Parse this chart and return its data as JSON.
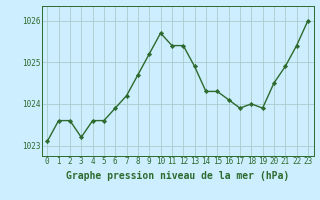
{
  "x": [
    0,
    1,
    2,
    3,
    4,
    5,
    6,
    7,
    8,
    9,
    10,
    11,
    12,
    13,
    14,
    15,
    16,
    17,
    18,
    19,
    20,
    21,
    22,
    23
  ],
  "y": [
    1023.1,
    1023.6,
    1023.6,
    1023.2,
    1023.6,
    1023.6,
    1023.9,
    1024.2,
    1024.7,
    1025.2,
    1025.7,
    1025.4,
    1025.4,
    1024.9,
    1024.3,
    1024.3,
    1024.1,
    1023.9,
    1024.0,
    1023.9,
    1024.5,
    1024.9,
    1025.4,
    1026.0
  ],
  "line_color": "#2d6a2d",
  "marker": "D",
  "marker_size": 2.2,
  "bg_color": "#cceeff",
  "grid_color": "#aacccc",
  "xlabel": "Graphe pression niveau de la mer (hPa)",
  "xlabel_fontsize": 7,
  "yticks": [
    1023,
    1024,
    1025,
    1026
  ],
  "xticks": [
    0,
    1,
    2,
    3,
    4,
    5,
    6,
    7,
    8,
    9,
    10,
    11,
    12,
    13,
    14,
    15,
    16,
    17,
    18,
    19,
    20,
    21,
    22,
    23
  ],
  "ylim": [
    1022.75,
    1026.35
  ],
  "xlim": [
    -0.5,
    23.5
  ],
  "tick_label_color": "#2d6a2d",
  "tick_fontsize": 5.5,
  "line_width": 1.0
}
